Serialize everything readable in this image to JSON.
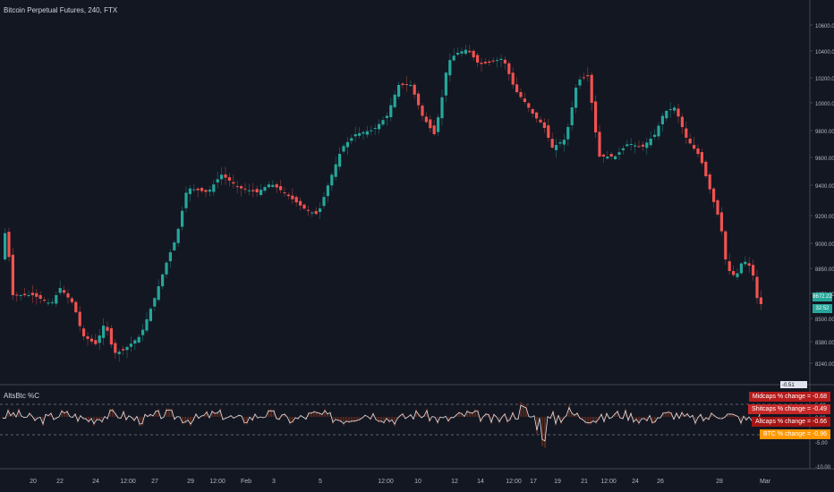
{
  "window": {
    "title": "Bitcoin Perpetual Futures, 240, FTX",
    "indicator_title": "AltsBtc %C"
  },
  "colors": {
    "background": "#131722",
    "up": "#26a69a",
    "up_bright": "#4fcf8a",
    "down": "#ef5350",
    "grid": "#2a2e39",
    "axis_text": "#b2b5be",
    "oscillator_line": "#e0e3eb",
    "histogram": "#5c2a1e"
  },
  "price_axis": {
    "ticks": [
      "10600.00",
      "10400.00",
      "10200.00",
      "10000.00",
      "9800.00",
      "9600.00",
      "9400.00",
      "9200.00",
      "9000.00",
      "8850.00",
      "8650.00",
      "8500.00",
      "8380.00",
      "8240.00"
    ],
    "current_price_tag": "8672.22",
    "current_price_tag2": "32:52"
  },
  "indicator_axis": {
    "ticks": [
      "5.00",
      "0.00",
      "-5.00",
      "-10.00"
    ],
    "current_tag": "-0.51"
  },
  "indicator_legend": [
    {
      "label": "Midcaps % change",
      "value": "-0.68",
      "color": "#b71c1c"
    },
    {
      "label": "Shitcaps % change",
      "value": "-0.49",
      "color": "#c62828"
    },
    {
      "label": "Altcaps % change",
      "value": "-0.66",
      "color": "#a31515"
    },
    {
      "label": "BTC % change",
      "value": "-0.96",
      "color": "#ff9800"
    }
  ],
  "time_axis": [
    "20",
    "22",
    "24",
    "12:00",
    "27",
    "29",
    "12:00",
    "Feb",
    "3",
    "5",
    "12:00",
    "10",
    "12",
    "14",
    "12:00",
    "17",
    "19",
    "21",
    "12:00",
    "24",
    "26",
    "28",
    "Mar"
  ]
}
